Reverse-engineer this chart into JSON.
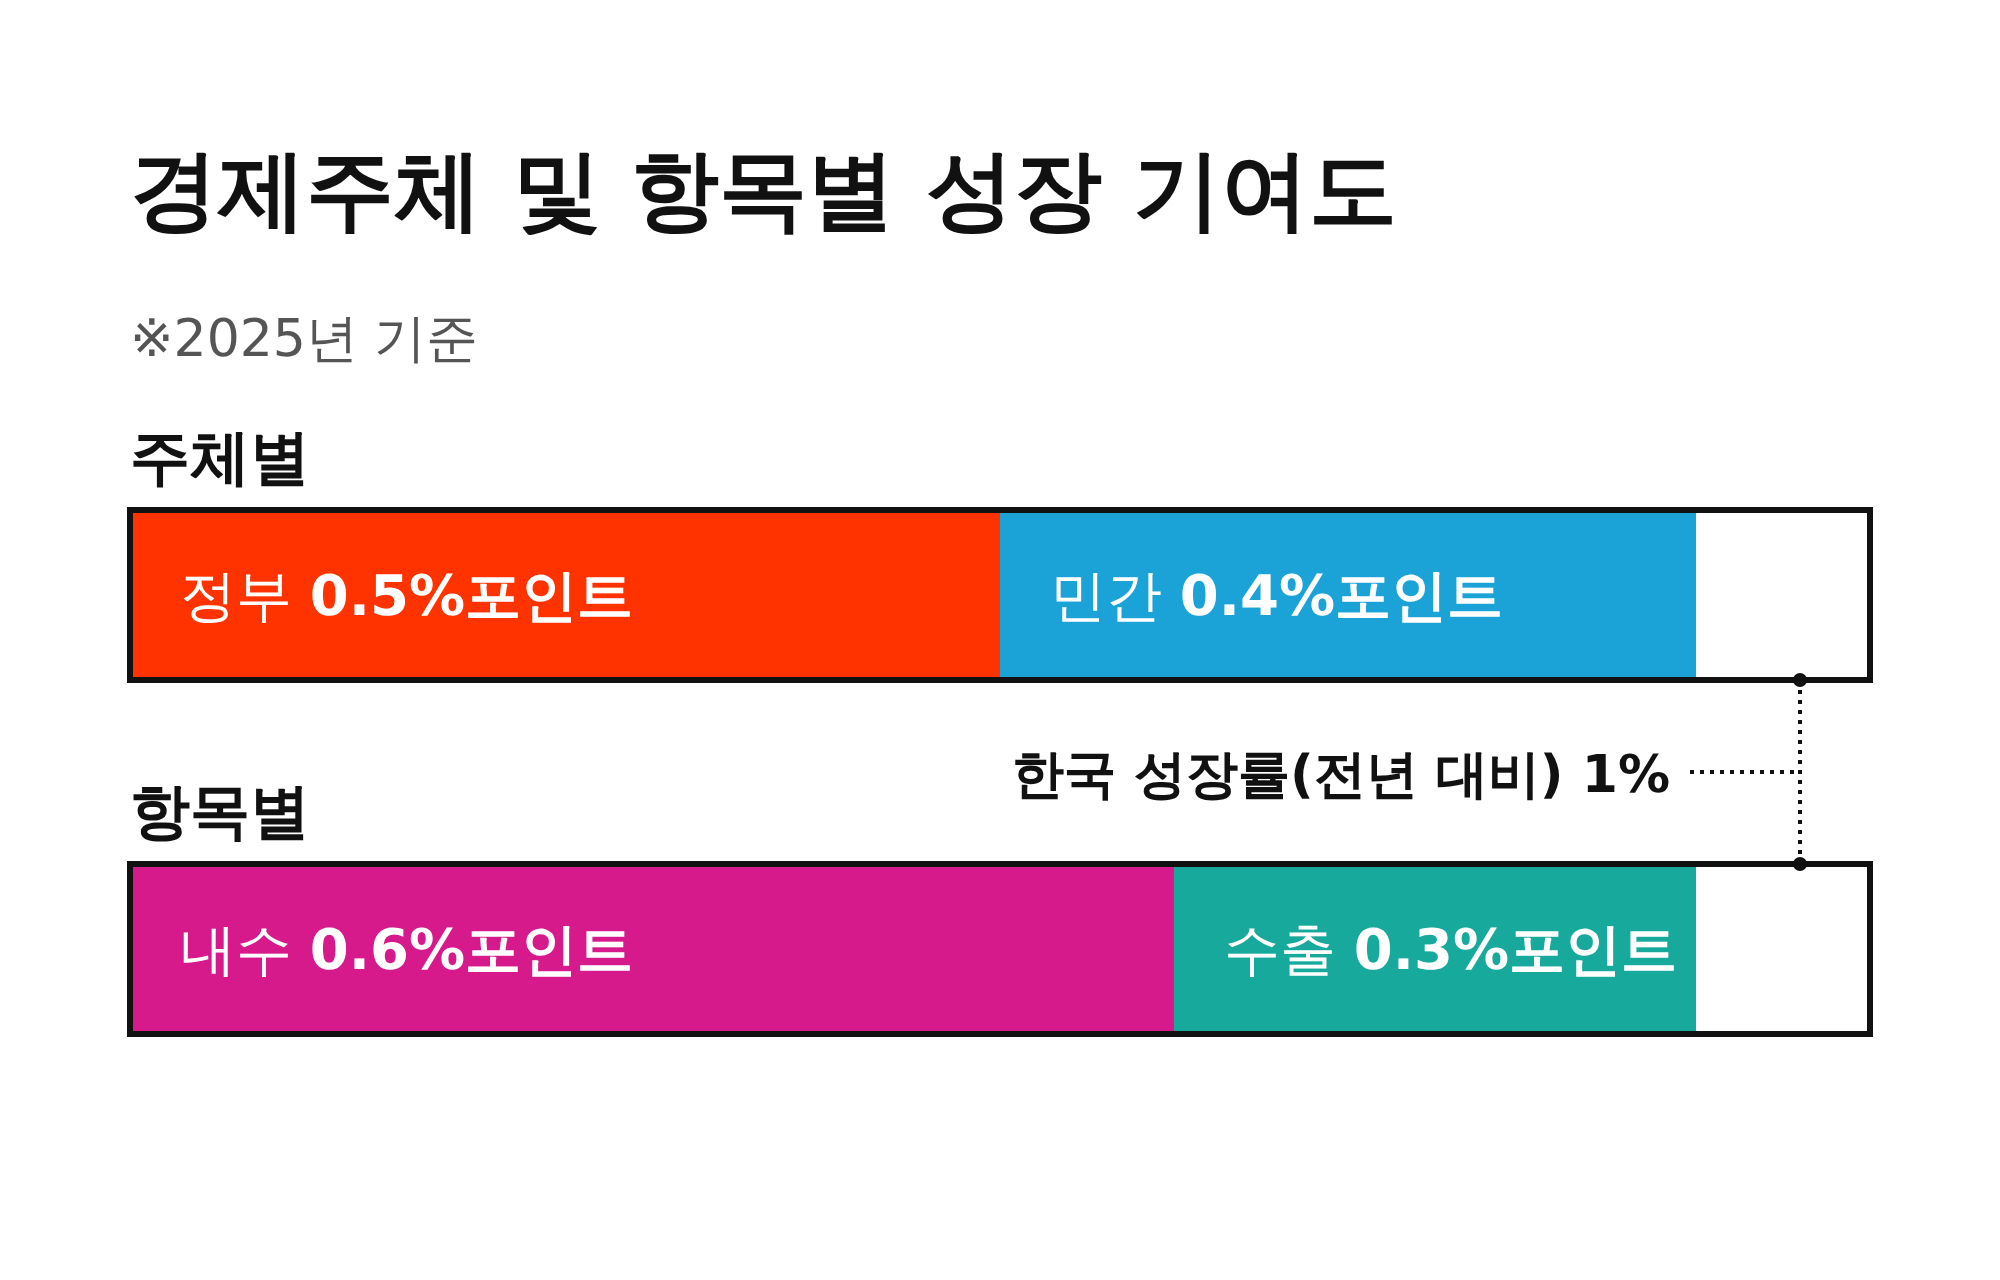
{
  "chart_data": {
    "type": "bar",
    "orientation": "horizontal",
    "stacked": true,
    "title": "경제주체 및 항목별 성장 기여도",
    "subtitle": "※2025년 기준",
    "categories": [
      "주체별",
      "항목별"
    ],
    "xlim": [
      0,
      1
    ],
    "series": [
      {
        "name": "정부",
        "color": "#ff3300",
        "values": [
          0.5,
          null
        ],
        "value_labels": [
          "0.5%포인트",
          null
        ]
      },
      {
        "name": "민간",
        "color": "#1ba3d8",
        "values": [
          0.4,
          null
        ],
        "value_labels": [
          "0.4%포인트",
          null
        ]
      },
      {
        "name": "내수",
        "color": "#d61a8c",
        "values": [
          null,
          0.6
        ],
        "value_labels": [
          null,
          "0.6%포인트"
        ]
      },
      {
        "name": "수출",
        "color": "#17a99b",
        "values": [
          null,
          0.3
        ],
        "value_labels": [
          null,
          "0.3%포인트"
        ]
      }
    ],
    "annotations": [
      "한국 성장률(전년 대비) 1%"
    ]
  }
}
